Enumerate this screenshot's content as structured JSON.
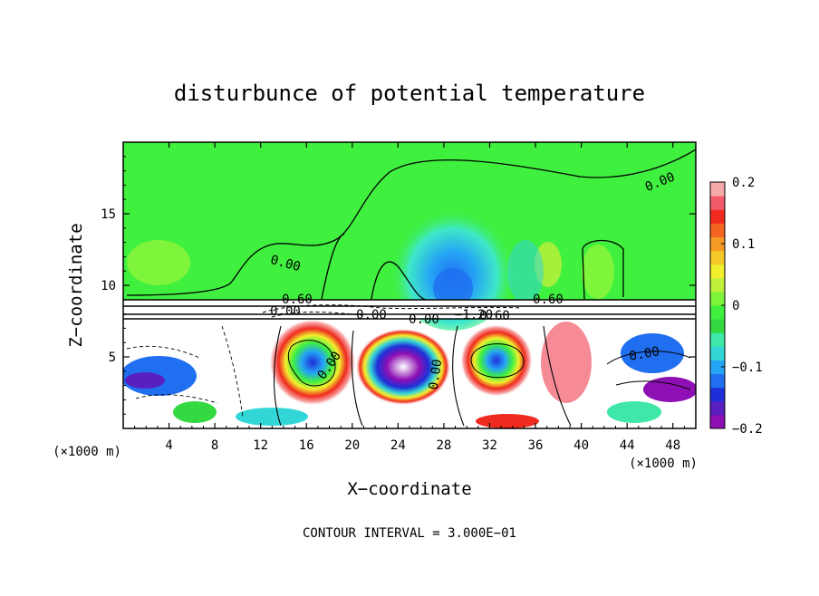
{
  "chart_data": {
    "type": "heatmap",
    "title": "disturbunce of potential temperature",
    "xlabel": "X−coordinate",
    "ylabel": "Z−coordinate",
    "x_unit": "(×1000 m)",
    "xlim": [
      0,
      50
    ],
    "ylim": [
      0,
      20
    ],
    "x_ticks": [
      4,
      8,
      12,
      16,
      20,
      24,
      28,
      32,
      36,
      40,
      44,
      48
    ],
    "y_ticks": [
      5,
      10,
      15
    ],
    "colorbar": {
      "range": [
        -0.2,
        0.2
      ],
      "ticks": [
        0.2,
        0.1,
        0,
        -0.1,
        -0.2
      ],
      "tick_labels": [
        "0.2",
        "0.1",
        "0",
        "−0.1",
        "−0.2"
      ],
      "colors": [
        "#8e0fb3",
        "#5a1fbf",
        "#1f2fd8",
        "#1f6ff0",
        "#25a4f5",
        "#33d6d6",
        "#3fe8a8",
        "#34d840",
        "#3ff03f",
        "#7ef53a",
        "#bff03a",
        "#f2ef2e",
        "#f5c92a",
        "#f59a25",
        "#f26420",
        "#ef2a1f",
        "#f25a6a",
        "#f7a8a8"
      ]
    },
    "contour_interval_label": "CONTOUR INTERVAL = 3.000E−01",
    "contour_labels": [
      "0.00",
      "0.00",
      "0.60",
      "0.60",
      "0.00",
      "0.00",
      "0.00",
      "0.00",
      "−1.20",
      "0.60",
      "0.00",
      "0.00"
    ]
  }
}
